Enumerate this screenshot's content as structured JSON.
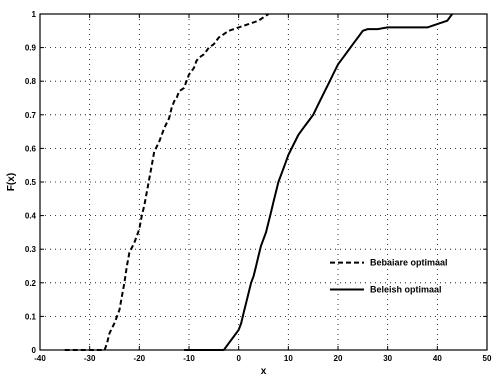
{
  "chart_data": {
    "type": "line",
    "title": "",
    "xlabel": "x",
    "ylabel": "F(x)",
    "xlim": [
      -40,
      50
    ],
    "ylim": [
      0,
      1
    ],
    "xticks": [
      -40,
      -30,
      -20,
      -10,
      0,
      10,
      20,
      30,
      40,
      50
    ],
    "yticks": [
      0,
      0.1,
      0.2,
      0.3,
      0.4,
      0.5,
      0.6,
      0.7,
      0.8,
      0.9,
      1
    ],
    "ytick_labels": [
      "0",
      "0.1",
      "0.2",
      "0.3",
      "0.4",
      "0.5",
      "0.6",
      "0.7",
      "0.8",
      "0.9",
      "1"
    ],
    "grid": true,
    "grid_style": "dotted",
    "legend_position": "bottom-right",
    "series": [
      {
        "name": "Bebaiare optimaal",
        "style": "dashed",
        "color": "#000000",
        "x": [
          -35,
          -27,
          -26.5,
          -26,
          -25,
          -24,
          -23.5,
          -23,
          -22.5,
          -22,
          -21,
          -20.5,
          -20,
          -19.5,
          -19,
          -18.5,
          -18,
          -17.5,
          -17,
          -16,
          -15.5,
          -15,
          -14,
          -13.5,
          -13,
          -12.5,
          -12,
          -11,
          -10.5,
          -10,
          -9,
          -8.5,
          -8,
          -7,
          -6.5,
          -6,
          -5,
          -4,
          -3,
          -2,
          0,
          2,
          4,
          6
        ],
        "y": [
          0,
          0,
          0.02,
          0.05,
          0.08,
          0.12,
          0.16,
          0.2,
          0.25,
          0.29,
          0.32,
          0.34,
          0.36,
          0.4,
          0.43,
          0.47,
          0.51,
          0.55,
          0.59,
          0.62,
          0.64,
          0.66,
          0.69,
          0.72,
          0.74,
          0.75,
          0.77,
          0.78,
          0.8,
          0.82,
          0.84,
          0.86,
          0.87,
          0.88,
          0.89,
          0.9,
          0.91,
          0.93,
          0.94,
          0.95,
          0.96,
          0.97,
          0.98,
          1
        ]
      },
      {
        "name": "Beleish optimaal",
        "style": "solid",
        "color": "#000000",
        "x": [
          -11,
          -3,
          -2,
          -1,
          0,
          0.5,
          1,
          1.5,
          2,
          2.5,
          3,
          3.5,
          4,
          4.5,
          5,
          5.5,
          6,
          6.5,
          7,
          7.5,
          8,
          8.5,
          9,
          9.5,
          10,
          11,
          12,
          13,
          14,
          15,
          16,
          17,
          18,
          19,
          20,
          21,
          22,
          23,
          24,
          25,
          26,
          28,
          30,
          34,
          38,
          40,
          42,
          43
        ],
        "y": [
          0,
          0,
          0.02,
          0.04,
          0.06,
          0.08,
          0.11,
          0.14,
          0.17,
          0.2,
          0.22,
          0.25,
          0.28,
          0.31,
          0.33,
          0.35,
          0.38,
          0.41,
          0.44,
          0.47,
          0.5,
          0.52,
          0.54,
          0.56,
          0.58,
          0.61,
          0.64,
          0.66,
          0.68,
          0.7,
          0.73,
          0.76,
          0.79,
          0.82,
          0.85,
          0.87,
          0.89,
          0.91,
          0.93,
          0.95,
          0.955,
          0.955,
          0.96,
          0.96,
          0.96,
          0.97,
          0.98,
          1
        ]
      }
    ]
  }
}
